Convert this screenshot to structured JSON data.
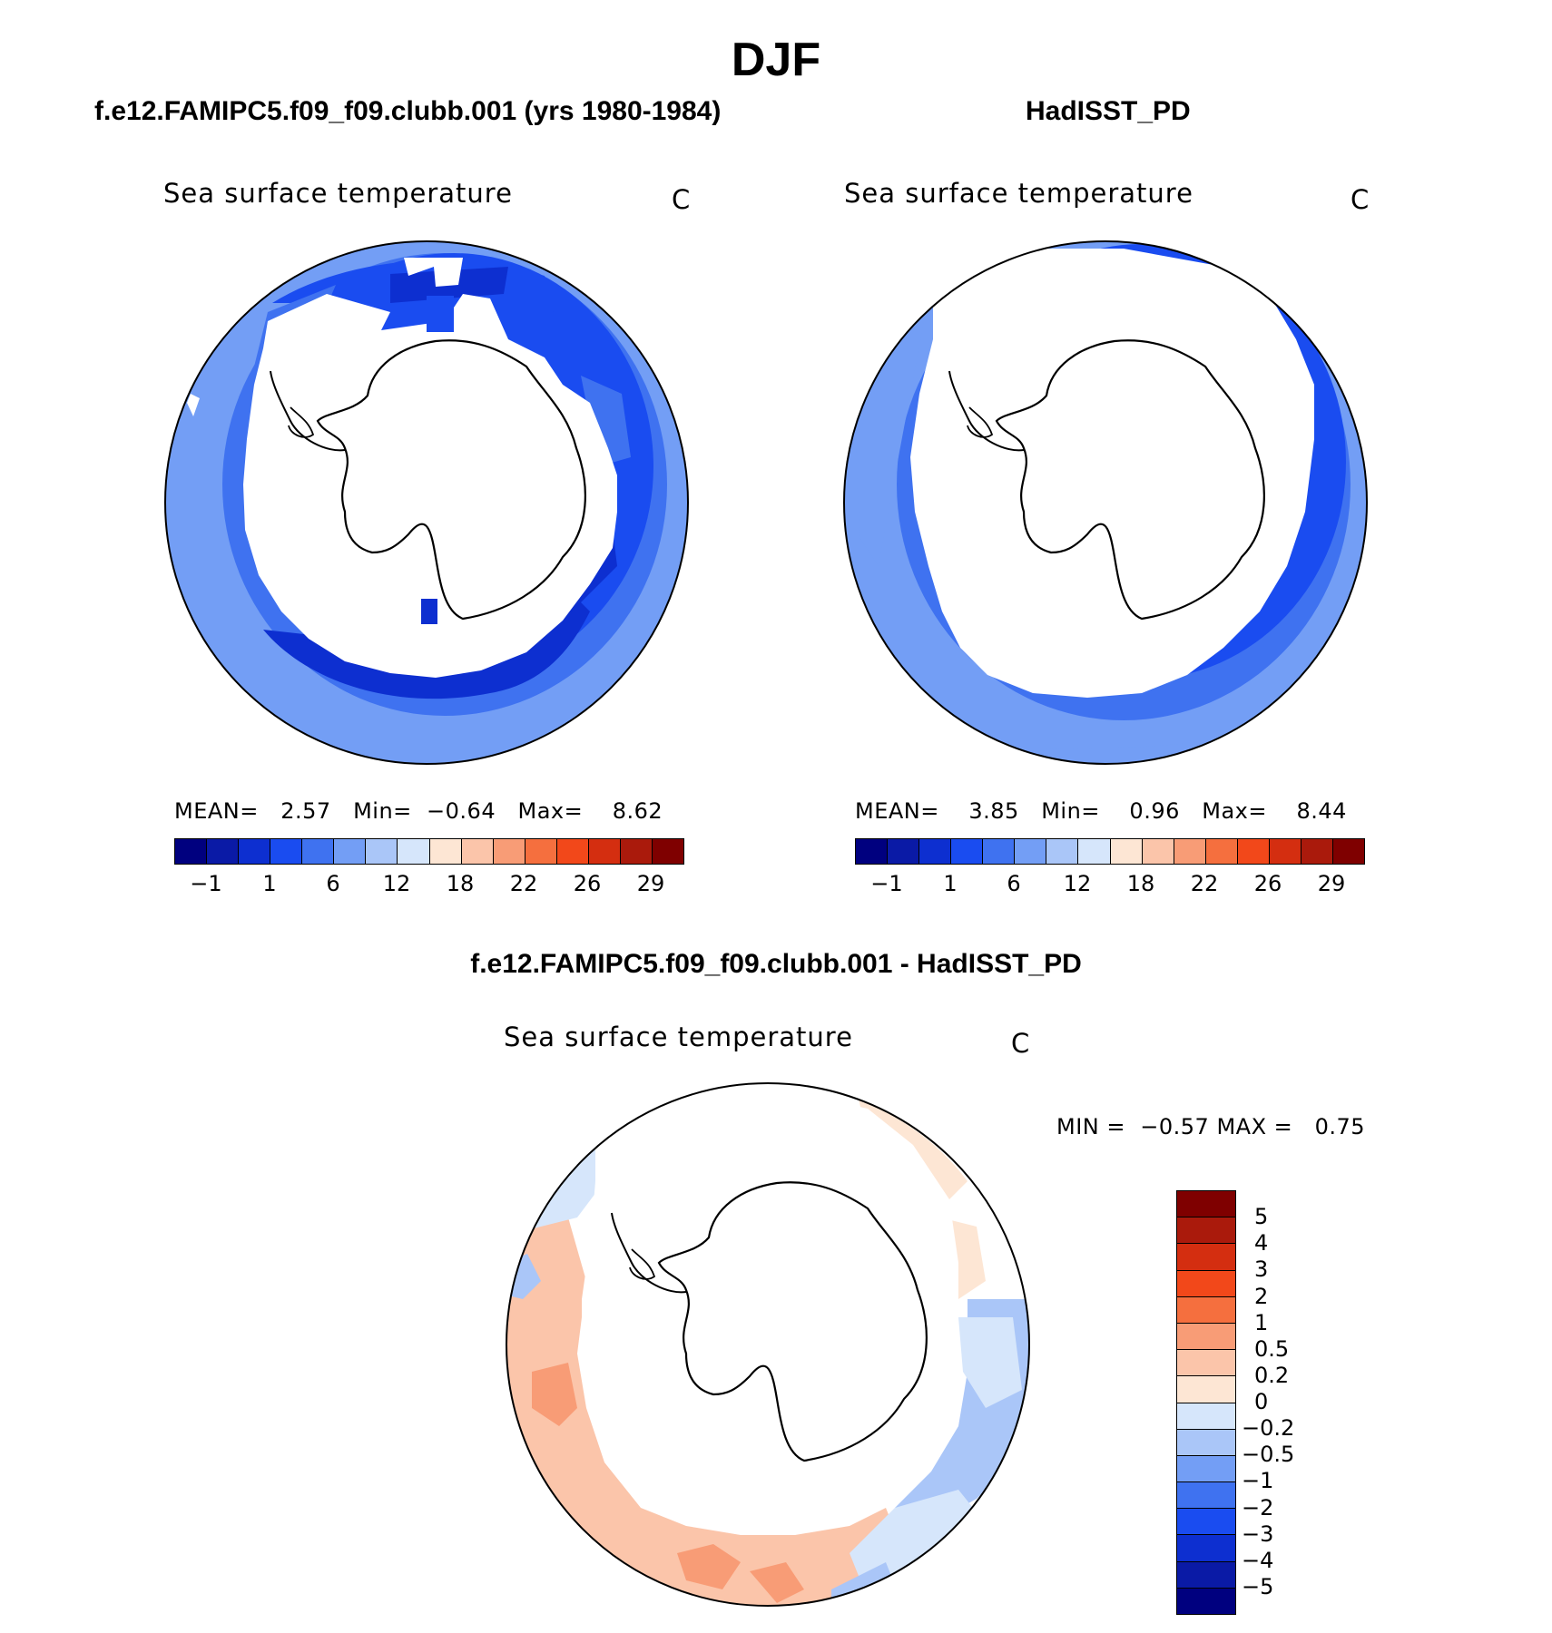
{
  "figure": {
    "title": "DJF"
  },
  "panels": [
    {
      "title": "f.e12.FAMIPC5.f09_f09.clubb.001 (yrs 1980-1984)",
      "variable": "Sea surface temperature",
      "units": "C",
      "stats": {
        "mean_label": "MEAN=",
        "mean": "2.57",
        "min_label": "Min=",
        "min": "−0.64",
        "max_label": "Max=",
        "max": "8.62"
      }
    },
    {
      "title": "HadISST_PD",
      "variable": "Sea surface temperature",
      "units": "C",
      "stats": {
        "mean_label": "MEAN=",
        "mean": "3.85",
        "min_label": "Min=",
        "min": "0.96",
        "max_label": "Max=",
        "max": "8.44"
      }
    },
    {
      "title": "f.e12.FAMIPC5.f09_f09.clubb.001 - HadISST_PD",
      "variable": "Sea surface temperature",
      "units": "C",
      "stats": {
        "min_label": "MIN =",
        "min": "−0.57",
        "max_label": "MAX =",
        "max": "0.75"
      }
    }
  ],
  "colorbar_abs": {
    "colors": [
      "#00007f",
      "#0a1aa6",
      "#0d2fd0",
      "#1a4cf0",
      "#3f72f0",
      "#739ef5",
      "#aac6f8",
      "#d6e6fb",
      "#fde6d4",
      "#fbc5aa",
      "#f89c76",
      "#f56f3e",
      "#f2481a",
      "#d42e10",
      "#aa1a0c",
      "#7f0000"
    ],
    "tick_labels": [
      "−1",
      "1",
      "6",
      "12",
      "18",
      "22",
      "26",
      "29"
    ]
  },
  "colorbar_diff": {
    "colors": [
      "#7f0000",
      "#aa1a0c",
      "#d42e10",
      "#f2481a",
      "#f56f3e",
      "#f89c76",
      "#fbc5aa",
      "#fde6d4",
      "#d6e6fb",
      "#aac6f8",
      "#739ef5",
      "#3f72f0",
      "#1a4cf0",
      "#0d2fd0",
      "#0a1aa6",
      "#00007f"
    ],
    "tick_labels": [
      "5",
      "4",
      "3",
      "2",
      "1",
      "0.5",
      "0.2",
      "0",
      "−0.2",
      "−0.5",
      "−1",
      "−2",
      "−3",
      "−4",
      "−5"
    ]
  }
}
